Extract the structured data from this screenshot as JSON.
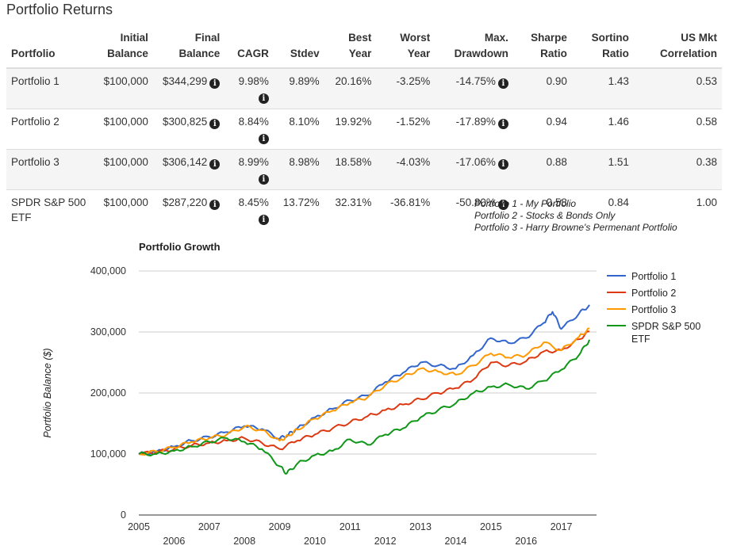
{
  "page": {
    "title": "Portfolio Returns"
  },
  "table": {
    "headers": [
      {
        "l1": "",
        "l2": "Portfolio"
      },
      {
        "l1": "Initial",
        "l2": "Balance"
      },
      {
        "l1": "Final",
        "l2": "Balance"
      },
      {
        "l1": "",
        "l2": "CAGR"
      },
      {
        "l1": "",
        "l2": "Stdev"
      },
      {
        "l1": "Best",
        "l2": "Year"
      },
      {
        "l1": "Worst",
        "l2": "Year"
      },
      {
        "l1": "Max.",
        "l2": "Drawdown"
      },
      {
        "l1": "Sharpe",
        "l2": "Ratio"
      },
      {
        "l1": "Sortino",
        "l2": "Ratio"
      },
      {
        "l1": "US Mkt",
        "l2": "Correlation"
      }
    ],
    "rows": [
      {
        "name": "Portfolio 1",
        "initial": "$100,000",
        "final": "$344,299",
        "cagr": "9.98%",
        "stdev": "9.89%",
        "best": "20.16%",
        "worst": "-3.25%",
        "drawdown": "-14.75%",
        "sharpe": "0.90",
        "sortino": "1.43",
        "corr": "0.53"
      },
      {
        "name": "Portfolio 2",
        "initial": "$100,000",
        "final": "$300,825",
        "cagr": "8.84%",
        "stdev": "8.10%",
        "best": "19.92%",
        "worst": "-1.52%",
        "drawdown": "-17.89%",
        "sharpe": "0.94",
        "sortino": "1.46",
        "corr": "0.58"
      },
      {
        "name": "Portfolio 3",
        "initial": "$100,000",
        "final": "$306,142",
        "cagr": "8.99%",
        "stdev": "8.98%",
        "best": "18.58%",
        "worst": "-4.03%",
        "drawdown": "-17.06%",
        "sharpe": "0.88",
        "sortino": "1.51",
        "corr": "0.38"
      },
      {
        "name": "SPDR S&P 500 ETF",
        "initial": "$100,000",
        "final": "$287,220",
        "cagr": "8.45%",
        "stdev": "13.72%",
        "best": "32.31%",
        "worst": "-36.81%",
        "drawdown": "-50.80%",
        "sharpe": "0.58",
        "sortino": "0.84",
        "corr": "1.00"
      }
    ],
    "info_icon": "info-circle-icon"
  },
  "notes": [
    "Portfolio 1 - My Portfolio",
    "Portfolio 2 - Stocks & Bonds Only",
    "Portfolio 3 - Harry Browne's Permenant Portfolio"
  ],
  "chart_data": {
    "type": "line",
    "title": "Portfolio Growth",
    "ylabel": "Portfolio Balance ($)",
    "xlabel": "",
    "xlim": [
      2005,
      2018
    ],
    "ylim": [
      0,
      400000
    ],
    "yticks": [
      "0",
      "100,000",
      "200,000",
      "300,000",
      "400,000"
    ],
    "xticks": [
      "2005",
      "2006",
      "2007",
      "2008",
      "2009",
      "2010",
      "2011",
      "2012",
      "2013",
      "2014",
      "2015",
      "2016",
      "2017"
    ],
    "grid": true,
    "legend_position": "right",
    "series": [
      {
        "name": "Portfolio 1",
        "color": "#3366cc",
        "x": [
          2005,
          2005.5,
          2006,
          2006.5,
          2007,
          2007.5,
          2008,
          2008.5,
          2009,
          2009.25,
          2009.5,
          2010,
          2010.5,
          2011,
          2011.5,
          2012,
          2012.5,
          2013,
          2013.5,
          2014,
          2014.5,
          2015,
          2015.5,
          2016,
          2016.5,
          2016.75,
          2017,
          2017.5,
          2017.8
        ],
        "y": [
          100000,
          104000,
          112000,
          122000,
          128000,
          136000,
          146000,
          141000,
          125000,
          132000,
          142000,
          160000,
          174000,
          188000,
          196000,
          218000,
          233000,
          250000,
          245000,
          240000,
          262000,
          290000,
          282000,
          290000,
          315000,
          333000,
          305000,
          330000,
          344299
        ]
      },
      {
        "name": "Portfolio 2",
        "color": "#dc3912",
        "x": [
          2005,
          2005.5,
          2006,
          2006.5,
          2007,
          2007.5,
          2008,
          2008.5,
          2009,
          2009.5,
          2010,
          2010.5,
          2011,
          2011.5,
          2012,
          2012.5,
          2013,
          2013.5,
          2014,
          2014.5,
          2015,
          2015.5,
          2016,
          2016.5,
          2017,
          2017.5,
          2017.8
        ],
        "y": [
          100000,
          103000,
          108000,
          114000,
          118000,
          122000,
          126000,
          118000,
          108000,
          122000,
          132000,
          142000,
          152000,
          162000,
          172000,
          181000,
          190000,
          200000,
          208000,
          222000,
          250000,
          245000,
          252000,
          268000,
          270000,
          288000,
          300825
        ]
      },
      {
        "name": "Portfolio 3",
        "color": "#ff9900",
        "x": [
          2005,
          2005.5,
          2006,
          2006.5,
          2007,
          2007.5,
          2008,
          2008.5,
          2009,
          2009.25,
          2009.5,
          2010,
          2010.5,
          2011,
          2011.5,
          2012,
          2012.5,
          2013,
          2013.5,
          2014,
          2014.5,
          2015,
          2015.5,
          2016,
          2016.5,
          2017,
          2017.5,
          2017.8
        ],
        "y": [
          100000,
          104000,
          111000,
          120000,
          126000,
          132000,
          145000,
          139000,
          122000,
          130000,
          140000,
          158000,
          171000,
          184000,
          193000,
          213000,
          226000,
          240000,
          235000,
          230000,
          245000,
          265000,
          258000,
          262000,
          283000,
          270000,
          292000,
          306142
        ]
      },
      {
        "name": "SPDR S&P 500 ETF",
        "color": "#109618",
        "x": [
          2005,
          2005.5,
          2006,
          2006.5,
          2007,
          2007.5,
          2008,
          2008.5,
          2009,
          2009.2,
          2009.5,
          2010,
          2010.5,
          2011,
          2011.5,
          2012,
          2012.5,
          2013,
          2013.5,
          2014,
          2014.5,
          2015,
          2015.5,
          2016,
          2016.5,
          2017,
          2017.5,
          2017.8
        ],
        "y": [
          100000,
          100000,
          105000,
          112000,
          120000,
          126000,
          120000,
          108000,
          80000,
          68000,
          84000,
          98000,
          105000,
          124000,
          115000,
          132000,
          142000,
          160000,
          172000,
          183000,
          200000,
          210000,
          214000,
          207000,
          220000,
          238000,
          262000,
          287220
        ]
      }
    ]
  }
}
